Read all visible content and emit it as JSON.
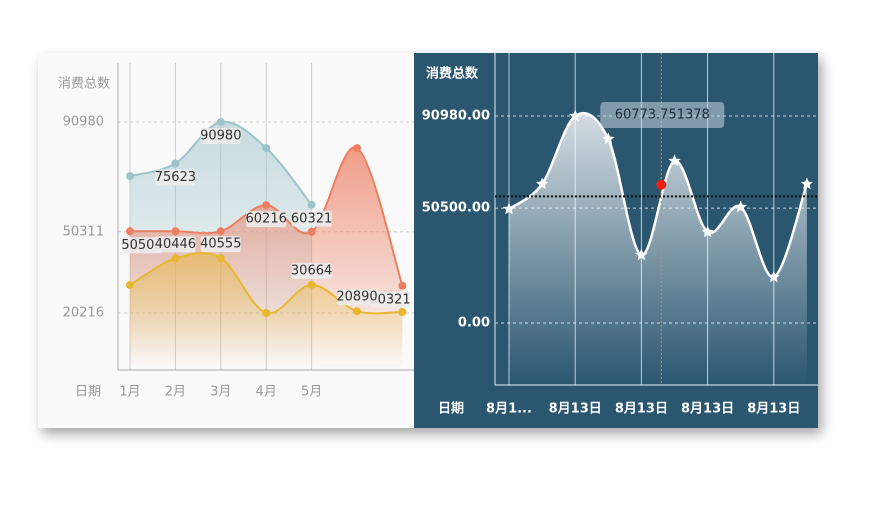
{
  "chart_data": [
    {
      "type": "line",
      "y_label": "消费总数",
      "x_label": "日期",
      "categories": [
        "1月",
        "2月",
        "3月",
        "4月",
        "5月",
        null,
        null
      ],
      "ylim": [
        0,
        113000
      ],
      "yticks": [
        20216,
        50311,
        90980
      ],
      "grid": true,
      "series": [
        {
          "color": "#9dc3cb",
          "values": [
            70960,
            75623,
            90980,
            81330,
            60321,
            null,
            null
          ],
          "value_labels": [
            null,
            "75623",
            "90980",
            null,
            "60321",
            null,
            null
          ]
        },
        {
          "color": "#ec7f62",
          "values": [
            50503,
            50503,
            50503,
            60216,
            50311,
            81330,
            30321
          ],
          "value_labels": [
            "50503",
            null,
            null,
            "60216",
            null,
            null,
            "30321"
          ]
        },
        {
          "color": "#e9b631",
          "values": [
            30600,
            40446,
            40555,
            20216,
            30664,
            20890,
            20600
          ],
          "value_labels": [
            null,
            "40446",
            "40555",
            null,
            "30664",
            "20890",
            null
          ]
        }
      ]
    },
    {
      "type": "line",
      "y_label": "消费总数",
      "x_label": "日期",
      "categories": [
        "8月1...",
        null,
        "8月13日",
        null,
        "8月13日",
        null,
        "8月13日",
        null,
        "8月13日",
        null
      ],
      "ylim": [
        -27250,
        118680
      ],
      "yticks": [
        {
          "value": 0,
          "label": "0.00"
        },
        {
          "value": 50500,
          "label": "50500.00"
        },
        {
          "value": 90980,
          "label": "90980.00"
        }
      ],
      "grid": true,
      "series": [
        {
          "color": "#ffffff",
          "values": [
            50100,
            61100,
            90980,
            80880,
            29890,
            71210,
            40000,
            50990,
            20220,
            61100
          ]
        }
      ],
      "average_line": 55650,
      "tooltip": {
        "x": 4.6,
        "value": 60773.751378
      }
    }
  ]
}
